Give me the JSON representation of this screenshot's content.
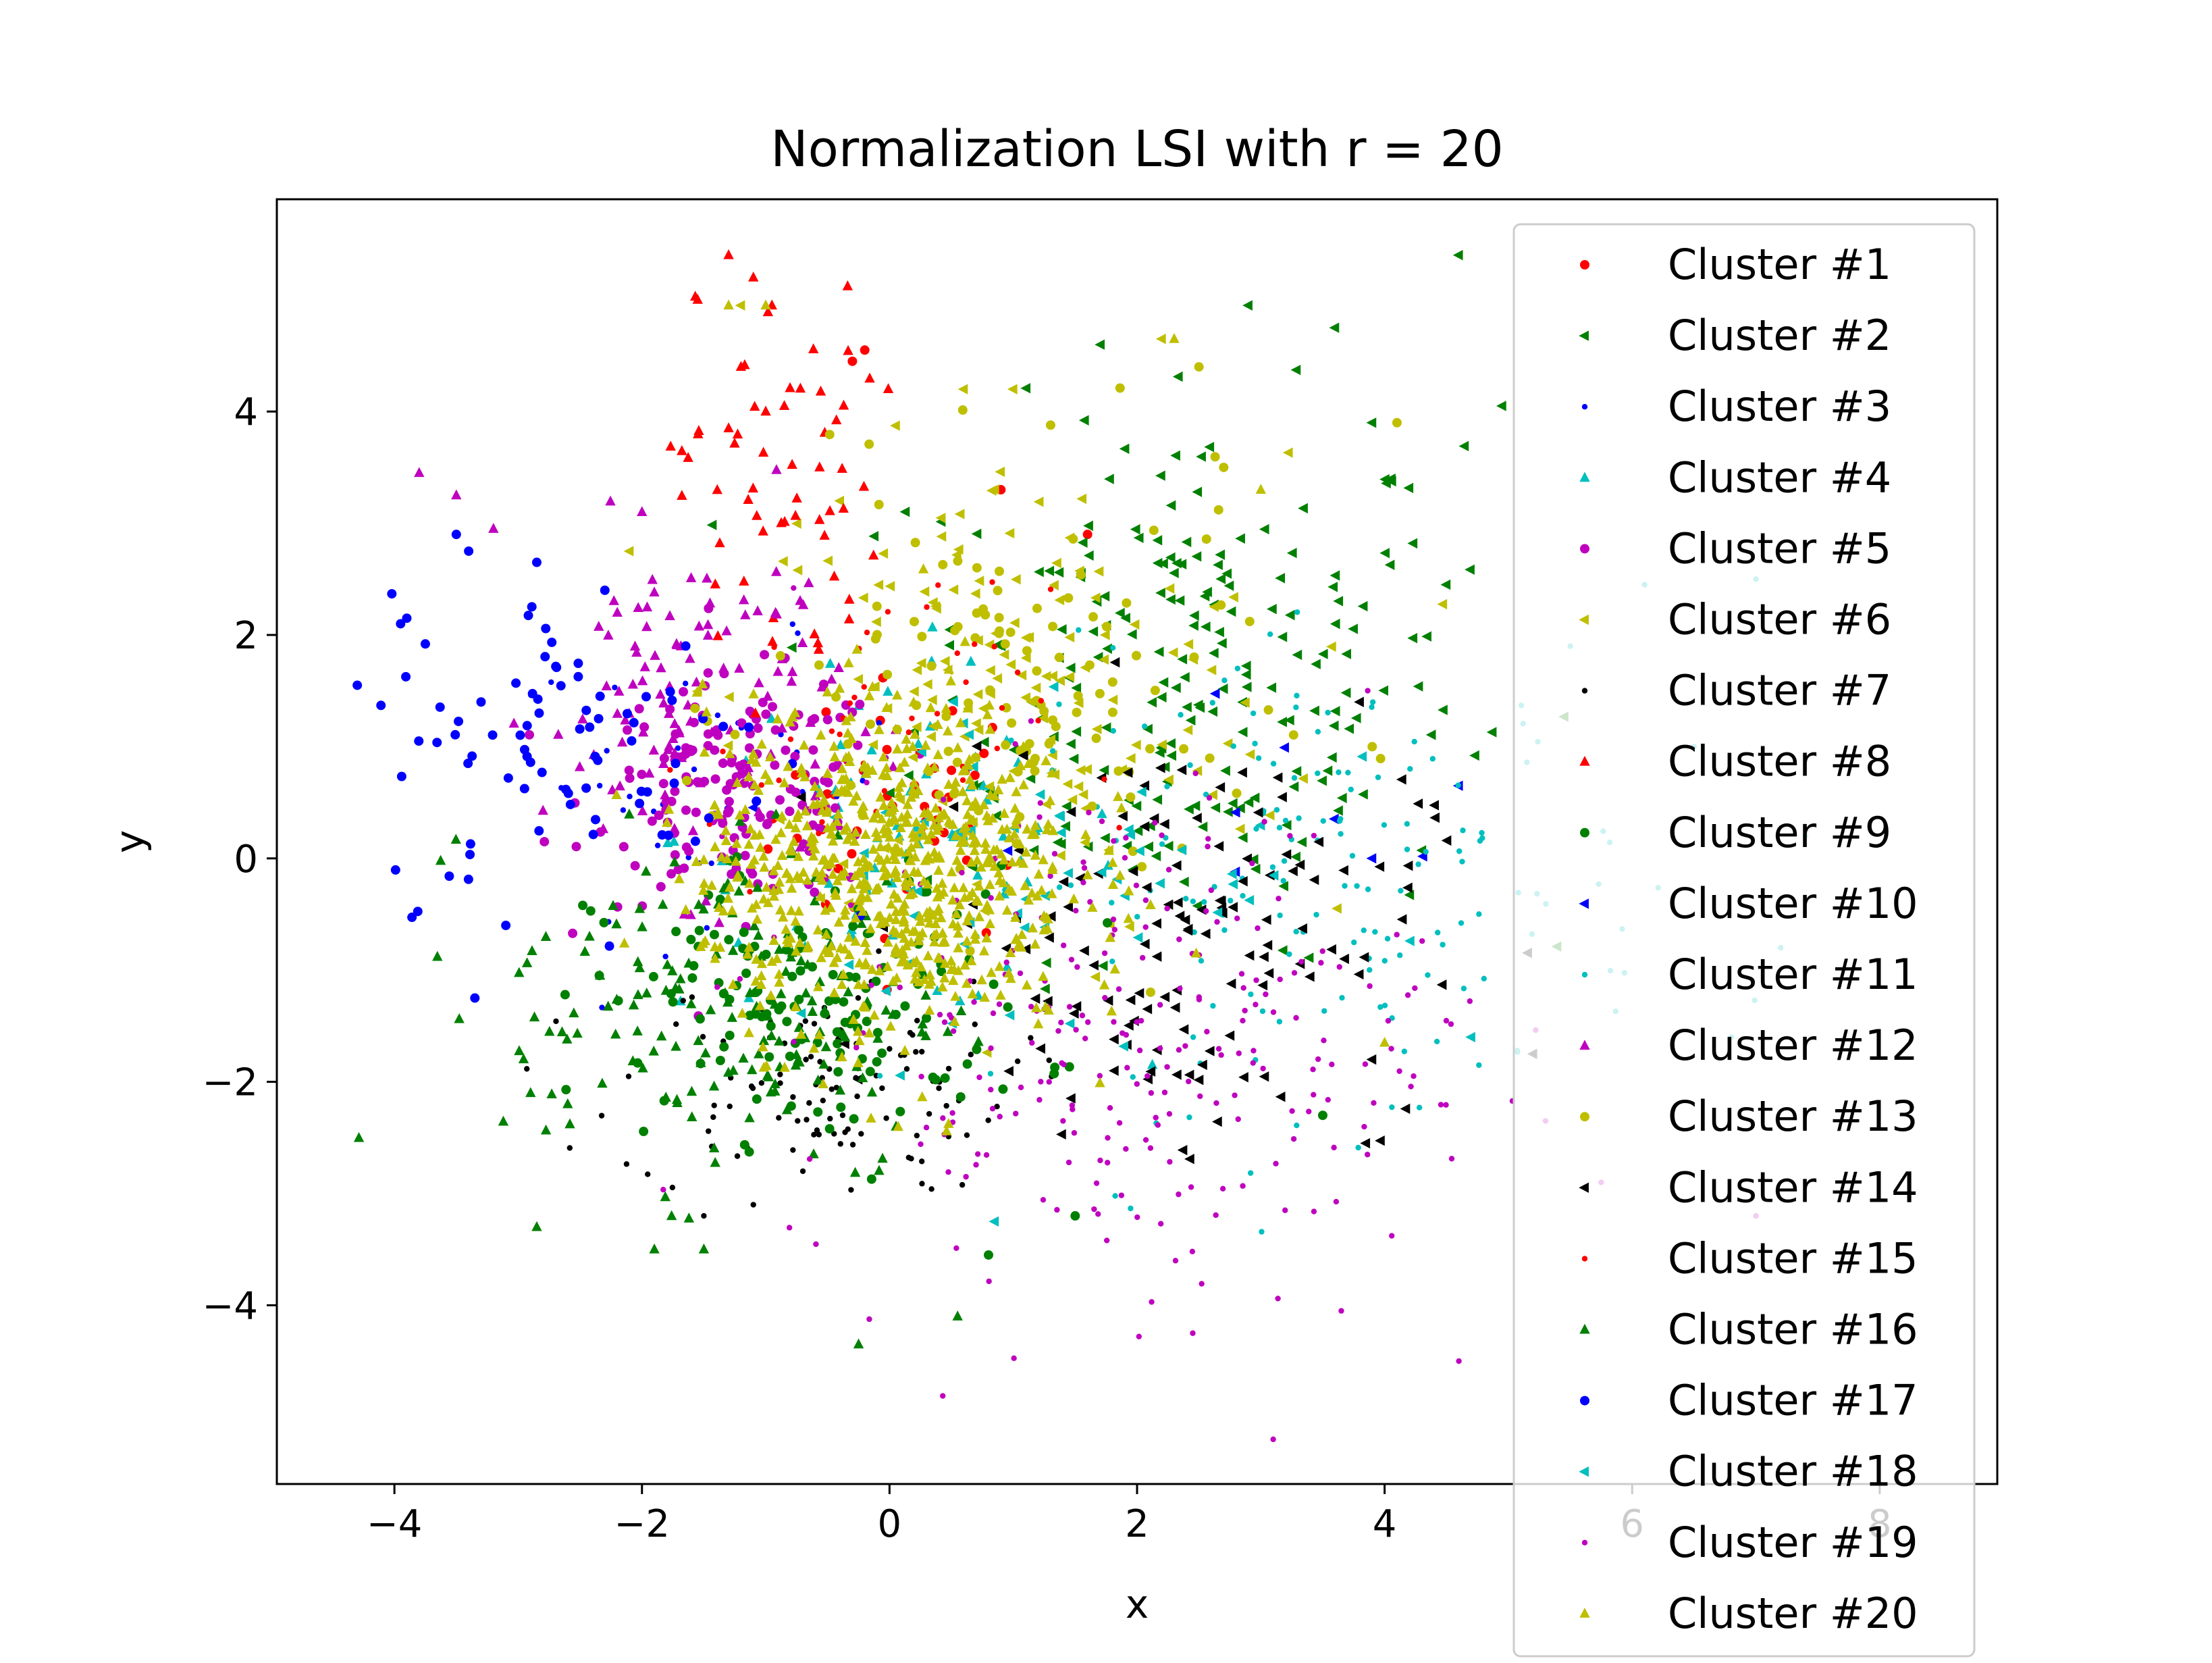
{
  "chart_data": {
    "type": "scatter",
    "title": "Normalization LSI with r = 20",
    "xlabel": "x",
    "ylabel": "y",
    "xlim": [
      -4.95,
      8.95
    ],
    "ylim": [
      -5.6,
      5.9
    ],
    "xticks": [
      -4,
      -2,
      0,
      2,
      4,
      6,
      8
    ],
    "yticks": [
      -4,
      -2,
      0,
      2,
      4
    ],
    "xtick_labels": [
      "−4",
      "−2",
      "0",
      "2",
      "4",
      "6",
      "8"
    ],
    "ytick_labels": [
      "−4",
      "−2",
      "0",
      "2",
      "4"
    ],
    "grid": false,
    "legend_position": "upper right",
    "series": [
      {
        "name": "Cluster #1",
        "color": "#ff0000",
        "marker": "circle",
        "cx": 0.15,
        "cy": 0.4,
        "sx": 0.55,
        "sy": 0.6,
        "n": 40,
        "points": [
          [
            -0.3,
            4.45
          ],
          [
            -0.2,
            4.55
          ],
          [
            0.9,
            3.3
          ],
          [
            1.6,
            2.9
          ]
        ]
      },
      {
        "name": "Cluster #2",
        "color": "#008000",
        "marker": "triangle-left",
        "cx": 2.4,
        "cy": 1.6,
        "sx": 1.1,
        "sy": 1.2,
        "n": 220,
        "points": [
          [
            4.6,
            5.4
          ],
          [
            4.95,
            4.05
          ],
          [
            2.9,
            4.95
          ],
          [
            3.6,
            4.75
          ],
          [
            4.5,
            2.45
          ],
          [
            3.9,
            3.9
          ]
        ]
      },
      {
        "name": "Cluster #3",
        "color": "#0000ff",
        "marker": "point",
        "cx": -1.5,
        "cy": 0.7,
        "sx": 0.8,
        "sy": 0.6,
        "n": 35,
        "points": []
      },
      {
        "name": "Cluster #4",
        "color": "#00bfbf",
        "marker": "triangle-up",
        "cx": 0.1,
        "cy": 0.2,
        "sx": 0.9,
        "sy": 0.8,
        "n": 70,
        "points": []
      },
      {
        "name": "Cluster #5",
        "color": "#bf00bf",
        "marker": "circle",
        "cx": -1.2,
        "cy": 0.6,
        "sx": 0.6,
        "sy": 0.5,
        "n": 160,
        "points": []
      },
      {
        "name": "Cluster #6",
        "color": "#bfbf00",
        "marker": "triangle-left",
        "cx": 1.0,
        "cy": 1.4,
        "sx": 1.1,
        "sy": 1.1,
        "n": 150,
        "points": [
          [
            0.6,
            4.2
          ],
          [
            1.0,
            4.2
          ],
          [
            2.2,
            4.65
          ],
          [
            -0.4,
            3.2
          ],
          [
            -2.1,
            2.75
          ],
          [
            -1.2,
            4.95
          ]
        ]
      },
      {
        "name": "Cluster #7",
        "color": "#000000",
        "marker": "point",
        "cx": -0.6,
        "cy": -2.0,
        "sx": 0.8,
        "sy": 0.5,
        "n": 110,
        "points": [
          [
            -1.5,
            -3.2
          ],
          [
            -1.1,
            -3.1
          ],
          [
            -0.7,
            -2.8
          ]
        ]
      },
      {
        "name": "Cluster #8",
        "color": "#ff0000",
        "marker": "triangle-up",
        "cx": -0.9,
        "cy": 3.3,
        "sx": 0.4,
        "sy": 0.9,
        "n": 55,
        "points": [
          [
            -1.3,
            5.4
          ],
          [
            -1.1,
            5.2
          ],
          [
            -1.55,
            5.0
          ],
          [
            -0.95,
            4.95
          ],
          [
            -1.2,
            4.4
          ],
          [
            -1.0,
            4.0
          ],
          [
            -0.85,
            4.05
          ],
          [
            -1.3,
            3.85
          ]
        ]
      },
      {
        "name": "Cluster #9",
        "color": "#008000",
        "marker": "circle",
        "cx": -0.6,
        "cy": -1.3,
        "sx": 0.9,
        "sy": 0.6,
        "n": 140,
        "points": [
          [
            0.8,
            -3.55
          ],
          [
            1.5,
            -3.2
          ],
          [
            3.5,
            -2.3
          ]
        ]
      },
      {
        "name": "Cluster #10",
        "color": "#0000ff",
        "marker": "triangle-left",
        "cx": 2.5,
        "cy": 0.1,
        "sx": 1.2,
        "sy": 0.9,
        "n": 8,
        "points": [
          [
            4.6,
            0.65
          ],
          [
            3.9,
            0.0
          ]
        ]
      },
      {
        "name": "Cluster #11",
        "color": "#00bfbf",
        "marker": "point",
        "cx": 3.6,
        "cy": -0.2,
        "sx": 1.3,
        "sy": 1.0,
        "n": 160,
        "points": [
          [
            6.1,
            2.45
          ],
          [
            7.0,
            2.5
          ],
          [
            5.5,
            1.9
          ],
          [
            6.5,
            1.0
          ],
          [
            7.2,
            -0.8
          ],
          [
            6.8,
            -1.6
          ],
          [
            7.4,
            0.2
          ]
        ]
      },
      {
        "name": "Cluster #12",
        "color": "#bf00bf",
        "marker": "triangle-up",
        "cx": -1.6,
        "cy": 1.4,
        "sx": 0.6,
        "sy": 0.8,
        "n": 110,
        "points": [
          [
            -3.8,
            3.45
          ],
          [
            -3.5,
            3.25
          ],
          [
            -3.2,
            2.95
          ],
          [
            -2.0,
            3.1
          ]
        ]
      },
      {
        "name": "Cluster #13",
        "color": "#bfbf00",
        "marker": "circle",
        "cx": 1.0,
        "cy": 1.3,
        "sx": 1.0,
        "sy": 1.0,
        "n": 120,
        "points": [
          [
            2.5,
            4.4
          ],
          [
            4.1,
            3.9
          ],
          [
            2.7,
            3.5
          ],
          [
            3.9,
            1.0
          ]
        ]
      },
      {
        "name": "Cluster #14",
        "color": "#000000",
        "marker": "triangle-left",
        "cx": 2.3,
        "cy": -0.6,
        "sx": 1.0,
        "sy": 0.9,
        "n": 130,
        "points": [
          [
            3.8,
            1.4
          ],
          [
            3.85,
            -2.55
          ],
          [
            3.9,
            -1.8
          ],
          [
            5.2,
            -1.75
          ]
        ]
      },
      {
        "name": "Cluster #15",
        "color": "#ff0000",
        "marker": "point",
        "cx": -0.1,
        "cy": 1.0,
        "sx": 0.7,
        "sy": 0.7,
        "n": 50,
        "points": []
      },
      {
        "name": "Cluster #16",
        "color": "#008000",
        "marker": "triangle-up",
        "cx": -1.3,
        "cy": -1.3,
        "sx": 0.9,
        "sy": 0.8,
        "n": 170,
        "points": [
          [
            -2.85,
            -3.3
          ],
          [
            -1.9,
            -3.5
          ],
          [
            -1.5,
            -3.5
          ],
          [
            -0.25,
            -4.35
          ],
          [
            0.55,
            -4.1
          ],
          [
            -2.9,
            -2.1
          ],
          [
            -2.6,
            -2.2
          ]
        ]
      },
      {
        "name": "Cluster #17",
        "color": "#0000ff",
        "marker": "circle",
        "cx": -2.5,
        "cy": 1.0,
        "sx": 0.8,
        "sy": 0.7,
        "n": 80,
        "points": [
          [
            -4.3,
            1.55
          ],
          [
            -3.95,
            2.1
          ],
          [
            -3.9,
            2.15
          ],
          [
            -3.5,
            2.9
          ],
          [
            -3.4,
            2.75
          ],
          [
            -2.85,
            2.65
          ],
          [
            -2.3,
            2.4
          ],
          [
            -3.1,
            -0.6
          ],
          [
            -3.35,
            -1.25
          ],
          [
            -3.3,
            1.4
          ]
        ]
      },
      {
        "name": "Cluster #18",
        "color": "#00bfbf",
        "marker": "triangle-left",
        "cx": 1.2,
        "cy": 0.0,
        "sx": 1.1,
        "sy": 0.9,
        "n": 60,
        "points": [
          [
            0.85,
            -3.25
          ],
          [
            4.7,
            -1.6
          ]
        ]
      },
      {
        "name": "Cluster #19",
        "color": "#bf00bf",
        "marker": "point",
        "cx": 1.8,
        "cy": -1.5,
        "sx": 1.3,
        "sy": 1.1,
        "n": 260,
        "points": [
          [
            3.1,
            -5.2
          ],
          [
            4.6,
            -4.5
          ],
          [
            2.45,
            -4.25
          ],
          [
            3.65,
            -4.05
          ],
          [
            5.3,
            -2.35
          ],
          [
            5.75,
            -2.9
          ],
          [
            7.0,
            -3.2
          ]
        ]
      },
      {
        "name": "Cluster #20",
        "color": "#bfbf00",
        "marker": "triangle-up",
        "cx": 0.0,
        "cy": -0.1,
        "sx": 0.75,
        "sy": 0.75,
        "n": 700,
        "points": [
          [
            -1.3,
            4.95
          ],
          [
            -1.0,
            4.95
          ],
          [
            2.3,
            4.65
          ],
          [
            3.0,
            3.3
          ],
          [
            4.0,
            -1.65
          ]
        ]
      }
    ]
  }
}
